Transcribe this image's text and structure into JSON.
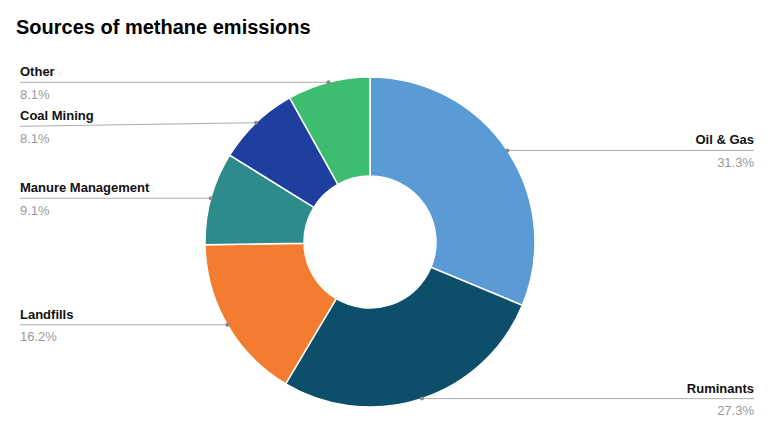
{
  "chart_data": {
    "type": "donut",
    "title": "Sources of methane emissions",
    "categories": [
      "Oil & Gas",
      "Ruminants",
      "Landfills",
      "Manure Management",
      "Coal Mining",
      "Other"
    ],
    "values": [
      31.3,
      27.3,
      16.2,
      9.1,
      8.1,
      8.1
    ],
    "value_labels": [
      "31.3%",
      "27.3%",
      "16.2%",
      "9.1%",
      "8.1%",
      "8.1%"
    ],
    "colors": [
      "#5b9bd5",
      "#0d4f6b",
      "#f47c30",
      "#2e8b8b",
      "#1f3fa0",
      "#3dbe6e"
    ],
    "data_labels": true
  }
}
